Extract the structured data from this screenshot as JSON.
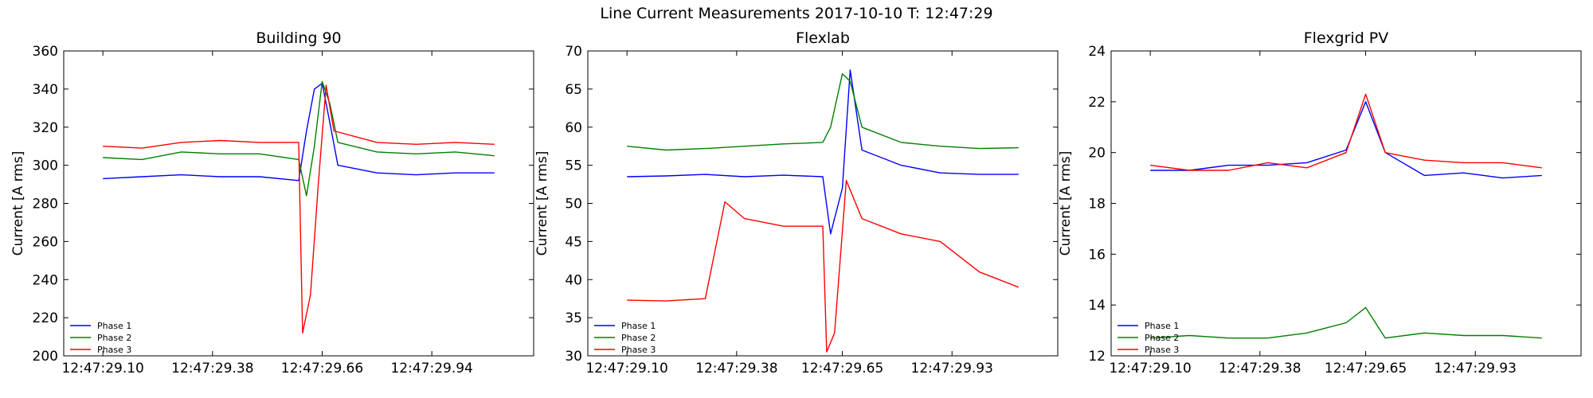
{
  "figure_title": "Line Current Measurements 2017-10-10 T: 12:47:29",
  "chart_data": [
    {
      "type": "line",
      "title": "Building 90",
      "xlabel": "",
      "ylabel": "Current [A rms]",
      "ylim": [
        200,
        360
      ],
      "yticks": [
        200,
        220,
        240,
        260,
        280,
        300,
        320,
        340,
        360
      ],
      "xlim": [
        12.4729,
        12.47302
      ],
      "xticks": [
        {
          "v": 12.47291,
          "label": "12:47:29.10"
        },
        {
          "v": 12.472938,
          "label": "12:47:29.38"
        },
        {
          "v": 12.472966,
          "label": "12:47:29.66"
        },
        {
          "v": 12.472994,
          "label": "12:47:29.94"
        }
      ],
      "legend": "lower-left",
      "grid": false,
      "series": [
        {
          "name": "Phase 1",
          "color": "#0000ff",
          "x": [
            12.47291,
            12.47292,
            12.47293,
            12.47294,
            12.47295,
            12.47296,
            12.472962,
            12.472964,
            12.472966,
            12.472968,
            12.47297,
            12.47298,
            12.47299,
            12.473,
            12.47301
          ],
          "values": [
            293,
            294,
            295,
            294,
            294,
            292,
            318,
            340,
            343,
            322,
            300,
            296,
            295,
            296,
            296
          ]
        },
        {
          "name": "Phase 2",
          "color": "#008000",
          "x": [
            12.47291,
            12.47292,
            12.47293,
            12.47294,
            12.47295,
            12.47296,
            12.472962,
            12.472964,
            12.472966,
            12.472968,
            12.47297,
            12.47298,
            12.47299,
            12.473,
            12.47301
          ],
          "values": [
            304,
            303,
            307,
            306,
            306,
            303,
            284,
            310,
            344,
            332,
            312,
            307,
            306,
            307,
            305
          ]
        },
        {
          "name": "Phase 3",
          "color": "#ff0000",
          "x": [
            12.47291,
            12.47292,
            12.47293,
            12.47294,
            12.47295,
            12.47296,
            12.472961,
            12.472963,
            12.472965,
            12.472967,
            12.472969,
            12.47298,
            12.47299,
            12.473,
            12.47301
          ],
          "values": [
            310,
            309,
            312,
            313,
            312,
            312,
            212,
            232,
            290,
            342,
            318,
            312,
            311,
            312,
            311
          ]
        }
      ]
    },
    {
      "type": "line",
      "title": "Flexlab",
      "xlabel": "",
      "ylabel": "Current [A rms]",
      "ylim": [
        30,
        70
      ],
      "yticks": [
        30,
        35,
        40,
        45,
        50,
        55,
        60,
        65,
        70
      ],
      "xlim": [
        12.4729,
        12.47302
      ],
      "xticks": [
        {
          "v": 12.47291,
          "label": "12:47:29.10"
        },
        {
          "v": 12.472938,
          "label": "12:47:29.38"
        },
        {
          "v": 12.472965,
          "label": "12:47:29.65"
        },
        {
          "v": 12.472993,
          "label": "12:47:29.93"
        }
      ],
      "legend": "lower-left",
      "grid": false,
      "series": [
        {
          "name": "Phase 1",
          "color": "#0000ff",
          "x": [
            12.47291,
            12.47292,
            12.47293,
            12.47294,
            12.47295,
            12.47296,
            12.472962,
            12.472965,
            12.472967,
            12.47297,
            12.47298,
            12.47299,
            12.473,
            12.47301
          ],
          "values": [
            53.5,
            53.6,
            53.8,
            53.5,
            53.7,
            53.5,
            46,
            52,
            67.5,
            57,
            55,
            54,
            53.8,
            53.8
          ]
        },
        {
          "name": "Phase 2",
          "color": "#008000",
          "x": [
            12.47291,
            12.47292,
            12.47293,
            12.47294,
            12.47295,
            12.47296,
            12.472962,
            12.472965,
            12.472967,
            12.47297,
            12.47298,
            12.47299,
            12.473,
            12.47301
          ],
          "values": [
            57.5,
            57,
            57.2,
            57.5,
            57.8,
            58,
            60,
            67,
            66,
            60,
            58,
            57.5,
            57.2,
            57.3
          ]
        },
        {
          "name": "Phase 3",
          "color": "#ff0000",
          "x": [
            12.47291,
            12.47292,
            12.47293,
            12.472935,
            12.47294,
            12.47295,
            12.47296,
            12.472961,
            12.472963,
            12.472966,
            12.47297,
            12.47298,
            12.47299,
            12.473,
            12.47301
          ],
          "values": [
            37.3,
            37.2,
            37.5,
            50.2,
            48,
            47,
            47,
            30.5,
            33,
            53,
            48,
            46,
            45,
            41,
            39
          ]
        }
      ]
    },
    {
      "type": "line",
      "title": "Flexgrid PV",
      "xlabel": "",
      "ylabel": "Current [A rms]",
      "ylim": [
        12,
        24
      ],
      "yticks": [
        12,
        14,
        16,
        18,
        20,
        22,
        24
      ],
      "xlim": [
        12.4729,
        12.47302
      ],
      "xticks": [
        {
          "v": 12.47291,
          "label": "12:47:29.10"
        },
        {
          "v": 12.472938,
          "label": "12:47:29.38"
        },
        {
          "v": 12.472965,
          "label": "12:47:29.65"
        },
        {
          "v": 12.472993,
          "label": "12:47:29.93"
        }
      ],
      "legend": "lower-left",
      "grid": false,
      "series": [
        {
          "name": "Phase 1",
          "color": "#0000ff",
          "x": [
            12.47291,
            12.47292,
            12.47293,
            12.47294,
            12.47295,
            12.47296,
            12.472965,
            12.47297,
            12.47298,
            12.47299,
            12.473,
            12.47301
          ],
          "values": [
            19.3,
            19.3,
            19.5,
            19.5,
            19.6,
            20.1,
            22,
            20,
            19.1,
            19.2,
            19,
            19.1
          ]
        },
        {
          "name": "Phase 2",
          "color": "#008000",
          "x": [
            12.47291,
            12.47292,
            12.47293,
            12.47294,
            12.47295,
            12.47296,
            12.472965,
            12.47297,
            12.47298,
            12.47299,
            12.473,
            12.47301
          ],
          "values": [
            12.7,
            12.8,
            12.7,
            12.7,
            12.9,
            13.3,
            13.9,
            12.7,
            12.9,
            12.8,
            12.8,
            12.7
          ]
        },
        {
          "name": "Phase 3",
          "color": "#ff0000",
          "x": [
            12.47291,
            12.47292,
            12.47293,
            12.47294,
            12.47295,
            12.47296,
            12.472965,
            12.47297,
            12.47298,
            12.47299,
            12.473,
            12.47301
          ],
          "values": [
            19.5,
            19.3,
            19.3,
            19.6,
            19.4,
            20,
            22.3,
            20,
            19.7,
            19.6,
            19.6,
            19.4
          ]
        }
      ]
    }
  ]
}
